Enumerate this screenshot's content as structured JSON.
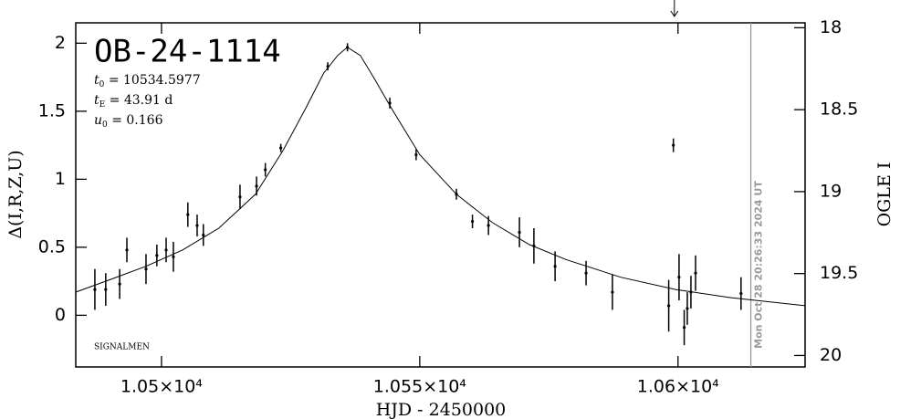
{
  "chart_data": {
    "type": "scatter",
    "title": "OB-24-1114",
    "params": [
      {
        "symbol": "t",
        "subscript": "0",
        "text": " = 10534.5977"
      },
      {
        "symbol": "t",
        "subscript": "E",
        "text": " = 43.91 d"
      },
      {
        "symbol": "u",
        "subscript": "0",
        "text": " = 0.166"
      }
    ],
    "credit": "SIGNALMEN",
    "x_label": "HJD - 2450000",
    "y_label": "Δ(I,R,Z,U)",
    "y2_label": "OGLE I",
    "xlim": [
      10483.4,
      10624.6
    ],
    "xticks": [
      {
        "value": 10500,
        "label": "1.05×10⁴"
      },
      {
        "value": 10550,
        "label": "1.055×10⁴"
      },
      {
        "value": 10600,
        "label": "1.06×10⁴"
      }
    ],
    "ylim": [
      -0.38,
      2.15
    ],
    "yticks": [
      0,
      0.5,
      1,
      1.5,
      2
    ],
    "y2lim": [
      20.07,
      17.97
    ],
    "y2ticks": [
      18,
      18.5,
      19,
      19.5,
      20
    ],
    "points": {
      "color": "#000",
      "x": [
        10487.1,
        10489.2,
        10491.9,
        10493.3,
        10497.0,
        10499.1,
        10500.9,
        10502.3,
        10505.1,
        10506.9,
        10508.1,
        10515.2,
        10518.4,
        10520.1,
        10523.1,
        10532.2,
        10536.0,
        10544.2,
        10549.3,
        10557.1,
        10560.2,
        10563.3,
        10569.3,
        10572.1,
        10576.2,
        10582.2,
        10587.3,
        10599.1,
        10598.2,
        10600.2,
        10601.2,
        10601.8,
        10602.5,
        10603.4,
        10612.2
      ],
      "values": [
        0.19,
        0.19,
        0.23,
        0.48,
        0.34,
        0.44,
        0.48,
        0.43,
        0.74,
        0.66,
        0.59,
        0.87,
        0.95,
        1.07,
        1.23,
        1.83,
        1.97,
        1.56,
        1.18,
        0.89,
        0.69,
        0.66,
        0.61,
        0.51,
        0.36,
        0.31,
        0.17,
        1.25,
        0.07,
        0.28,
        -0.09,
        0.05,
        0.17,
        0.31,
        0.16
      ],
      "errors": [
        0.15,
        0.12,
        0.11,
        0.09,
        0.11,
        0.08,
        0.09,
        0.11,
        0.09,
        0.08,
        0.08,
        0.09,
        0.07,
        0.05,
        0.03,
        0.03,
        0.03,
        0.04,
        0.04,
        0.04,
        0.05,
        0.07,
        0.11,
        0.13,
        0.11,
        0.09,
        0.13,
        0.05,
        0.19,
        0.17,
        0.13,
        0.12,
        0.12,
        0.13,
        0.12
      ]
    },
    "model": {
      "color": "#000",
      "x": [
        10483.4,
        10489.9,
        10497.0,
        10504.1,
        10511.1,
        10518.2,
        10523.5,
        10527.9,
        10531.4,
        10534.1,
        10536.0,
        10538.5,
        10541.2,
        10544.7,
        10550.0,
        10557.1,
        10564.1,
        10571.2,
        10578.3,
        10588.9,
        10599.5,
        10610.1,
        10624.6
      ],
      "values": [
        0.17,
        0.26,
        0.36,
        0.48,
        0.64,
        0.89,
        1.21,
        1.52,
        1.78,
        1.91,
        1.97,
        1.91,
        1.74,
        1.51,
        1.18,
        0.89,
        0.68,
        0.52,
        0.41,
        0.28,
        0.19,
        0.13,
        0.07
      ]
    },
    "now_line": {
      "x": 10614.1,
      "label": "Mon Oct 28 20:26:33 2024 UT",
      "color": "#999"
    },
    "arrow_x": 10599.3
  }
}
